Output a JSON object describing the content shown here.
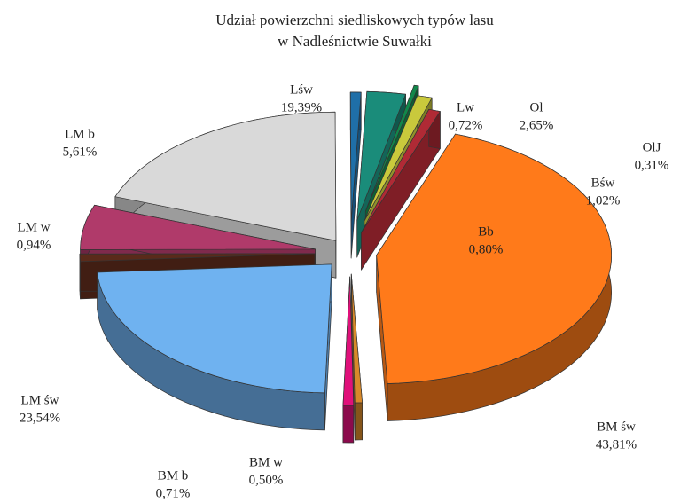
{
  "chart_data": {
    "type": "pie3d",
    "title": [
      "Udział powierzchni siedliskowych typów lasu",
      "w Nadleśnictwie Suwałki"
    ],
    "categories": [
      "Lśw",
      "Lw",
      "Ol",
      "OlJ",
      "Bśw",
      "Bb",
      "BM św",
      "BM w",
      "BM b",
      "LM św",
      "LM w",
      "LM b"
    ],
    "values": [
      19.39,
      0.72,
      2.65,
      0.31,
      1.02,
      0.8,
      43.81,
      0.5,
      0.71,
      23.54,
      0.94,
      5.61
    ],
    "value_labels": [
      "19,39%",
      "0,72%",
      "2,65%",
      "0,31%",
      "1,02%",
      "0,80%",
      "43,81%",
      "0,50%",
      "0,71%",
      "23,54%",
      "0,94%",
      "5,61%"
    ],
    "colors": [
      "#d9d9d9",
      "#1f6fa8",
      "#1a8c7a",
      "#12874a",
      "#c9c93c",
      "#b02a35",
      "#ff7a1a",
      "#d8892a",
      "#e0107a",
      "#6fb2f0",
      "#5a2a1a",
      "#b03a6a"
    ]
  }
}
